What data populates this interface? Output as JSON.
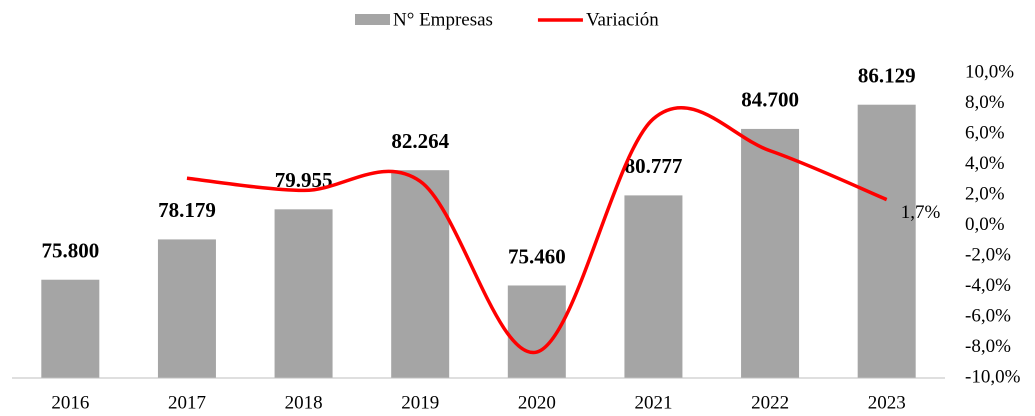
{
  "chart_data": {
    "type": "bar",
    "categories": [
      "2016",
      "2017",
      "2018",
      "2019",
      "2020",
      "2021",
      "2022",
      "2023"
    ],
    "ylim": [
      70000,
      88000
    ],
    "y2lim": [
      -10,
      10
    ],
    "y2ticks": [
      {
        "value": 10,
        "label": "10,0%"
      },
      {
        "value": 8,
        "label": "8,0%"
      },
      {
        "value": 6,
        "label": "6,0%"
      },
      {
        "value": 4,
        "label": "4,0%"
      },
      {
        "value": 2,
        "label": "2,0%"
      },
      {
        "value": 0,
        "label": "0,0%"
      },
      {
        "value": -2,
        "label": "-2,0%"
      },
      {
        "value": -4,
        "label": "-4,0%"
      },
      {
        "value": -6,
        "label": "-6,0%"
      },
      {
        "value": -8,
        "label": "-8,0%"
      },
      {
        "value": -10,
        "label": "-10,0%"
      }
    ],
    "legend": "top",
    "series": [
      {
        "name": "N° Empresas",
        "type": "bar",
        "color": "#a5a5a5",
        "values": [
          75800,
          78179,
          79955,
          82264,
          75460,
          80777,
          84700,
          86129
        ],
        "value_labels": [
          "75.800",
          "78.179",
          "79.955",
          "82.264",
          "75.460",
          "80.777",
          "84.700",
          "86.129"
        ]
      },
      {
        "name": "Variación",
        "type": "line",
        "axis": "y2",
        "color": "#ff0000",
        "smooth": true,
        "values": [
          null,
          3.1,
          2.3,
          2.9,
          -8.3,
          7.0,
          4.9,
          1.7
        ],
        "value_labels": [
          null,
          null,
          null,
          null,
          null,
          null,
          null,
          "1,7%"
        ]
      }
    ]
  }
}
